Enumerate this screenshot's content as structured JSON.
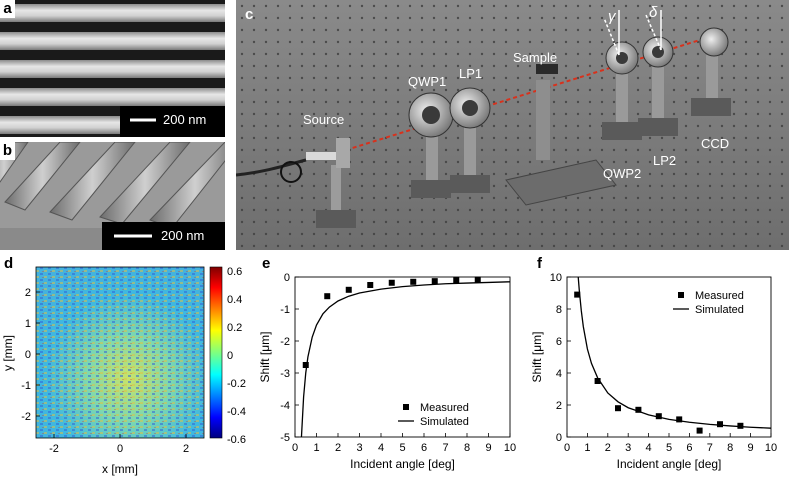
{
  "panel_a": {
    "letter": "a",
    "scale_label": "200 nm"
  },
  "panel_b": {
    "letter": "b",
    "scale_label": "200 nm"
  },
  "panel_c": {
    "letter": "c",
    "labels": {
      "source": "Source",
      "qwp1": "QWP1",
      "lp1": "LP1",
      "sample": "Sample",
      "qwp2": "QWP2",
      "lp2": "LP2",
      "ccd": "CCD",
      "gamma": "γ",
      "delta": "δ"
    }
  },
  "panel_d": {
    "letter": "d",
    "xlabel": "x [mm]",
    "ylabel": "y [mm]",
    "xticks": [
      "-2",
      "0",
      "2"
    ],
    "yticks": [
      "2",
      "1",
      "0",
      "-1",
      "-2"
    ],
    "colorbar_ticks": [
      "0.6",
      "0.4",
      "0.2",
      "0",
      "-0.2",
      "-0.4",
      "-0.6"
    ]
  },
  "panel_e": {
    "letter": "e"
  },
  "panel_f": {
    "letter": "f"
  },
  "chart_data": [
    {
      "panel": "e",
      "type": "scatter",
      "xlabel": "Incident angle [deg]",
      "ylabel": "Shift [μm]",
      "xlim": [
        0,
        10
      ],
      "ylim": [
        -5,
        0
      ],
      "xticks": [
        0,
        1,
        2,
        3,
        4,
        5,
        6,
        7,
        8,
        9,
        10
      ],
      "yticks": [
        0,
        -1,
        -2,
        -3,
        -4,
        -5
      ],
      "legend": "bottom-right",
      "series": [
        {
          "name": "Measured",
          "kind": "points",
          "x": [
            0.5,
            1.5,
            2.5,
            3.5,
            4.5,
            5.5,
            6.5,
            7.5,
            8.5
          ],
          "y": [
            -2.75,
            -0.6,
            -0.4,
            -0.25,
            -0.18,
            -0.15,
            -0.13,
            -0.1,
            -0.08
          ]
        },
        {
          "name": "Simulated",
          "kind": "line",
          "x": [
            0.3,
            0.4,
            0.5,
            0.6,
            0.8,
            1.0,
            1.3,
            1.6,
            2,
            2.5,
            3,
            4,
            5,
            6,
            7,
            8,
            9,
            10
          ],
          "y": [
            -5.0,
            -3.75,
            -3.0,
            -2.5,
            -1.88,
            -1.5,
            -1.15,
            -0.94,
            -0.75,
            -0.6,
            -0.5,
            -0.38,
            -0.3,
            -0.25,
            -0.21,
            -0.19,
            -0.17,
            -0.15
          ]
        }
      ]
    },
    {
      "panel": "f",
      "type": "scatter",
      "xlabel": "Incident angle [deg]",
      "ylabel": "Shift [μm]",
      "xlim": [
        0,
        10
      ],
      "ylim": [
        0,
        10
      ],
      "xticks": [
        0,
        1,
        2,
        3,
        4,
        5,
        6,
        7,
        8,
        9,
        10
      ],
      "yticks": [
        0,
        2,
        4,
        6,
        8,
        10
      ],
      "legend": "top-right",
      "series": [
        {
          "name": "Measured",
          "kind": "points",
          "x": [
            0.5,
            1.5,
            2.5,
            3.5,
            4.5,
            5.5,
            6.5,
            7.5,
            8.5
          ],
          "y": [
            8.9,
            3.5,
            1.8,
            1.7,
            1.3,
            1.1,
            0.4,
            0.8,
            0.7
          ]
        },
        {
          "name": "Simulated",
          "kind": "line",
          "x": [
            0.55,
            0.6,
            0.7,
            0.8,
            1.0,
            1.2,
            1.5,
            2,
            2.5,
            3,
            4,
            5,
            6,
            7,
            8,
            9,
            10
          ],
          "y": [
            10.0,
            9.2,
            7.9,
            6.9,
            5.5,
            4.6,
            3.7,
            2.75,
            2.2,
            1.83,
            1.38,
            1.1,
            0.92,
            0.79,
            0.69,
            0.61,
            0.55
          ]
        }
      ]
    }
  ]
}
